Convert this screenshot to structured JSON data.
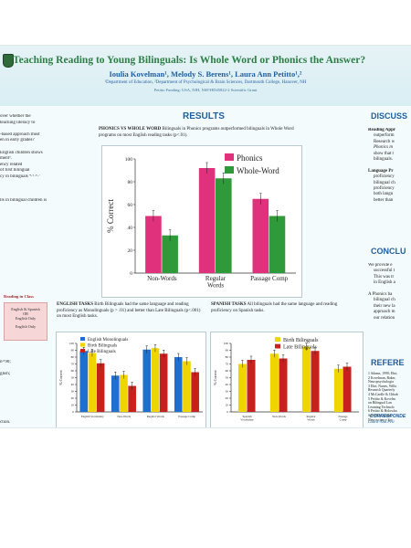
{
  "header": {
    "title": "Teaching Reading to Young Bilinguals: Is Whole Word or Phonics the Answer?",
    "authors": "Ioulia Kovelman¹, Melody S. Berens¹, Laura Ann Petitto¹,²",
    "affiliation": "¹Department of Education, ²Department of Psychological & Brain Sciences, Dartmouth College, Hanover, NH",
    "funding": "Petitto Funding: USA, NIH, NSF/HD45822-2 Scientific Grant"
  },
  "left_column": {
    "lines": [
      "over whether the",
      "teaching literacy to",
      "",
      "-based approach most",
      "en in early grades?",
      "",
      "English children shows",
      "ment³.",
      "ency related",
      "of first bilingual",
      "cy in bilinguals ⁴·⁵·⁶·⁷",
      "",
      "",
      "",
      "lls in bilingual children is"
    ],
    "flow_title": "Reading in Class",
    "flow_items": [
      "English & Spanish",
      "OR",
      "English Only",
      "English Only"
    ],
    "lower_lines": [
      "n=90;",
      "",
      "glish;",
      "",
      "",
      "",
      "",
      "",
      "",
      "",
      "ction."
    ]
  },
  "results": {
    "heading": "RESULTS",
    "phonics_title": "PHONICS VS WHOLE WORD",
    "phonics_text": "Bilinguals in Phonics programs outperformed bilinguals in Whole Word programs on most English reading tasks (p<.01).",
    "english_title": "ENGLISH TASKS",
    "english_text": "Birth Bilinguals had the same language and reading proficiency as Monolinguals (p > .01) and better than Late Bilinguals (p<.001) on most English tasks.",
    "spanish_title": "SPANISH TASKS",
    "spanish_text": "All bilinguals had the same language and reading proficiency on Spanish tasks."
  },
  "right_column": {
    "discussion_heading": "DISCUSS",
    "discussion_lines": [
      "Reading Appr",
      "outperform",
      "Research w",
      "Phonics m",
      "show that t",
      "bilinguals.",
      "",
      "Language Pr",
      "proficiency",
      "bilingual ch",
      "proficiency",
      "both langu",
      "better than"
    ],
    "conclusion_heading": "CONCLU",
    "conclusion_lines": [
      "We provide e",
      "successful t",
      "This was tr",
      "in English a",
      "",
      "A Phonics ba",
      "bilingual ch",
      "their new la",
      "approach m",
      "our relation"
    ],
    "references_heading": "REFERE",
    "references": [
      "1 Adams, 1990; Ehri,",
      "2 Kovelman, Baker,",
      "  Neuropsychologia",
      "3 Ehri, Nunes, Willo",
      "  Research Quarterly",
      "4 McCardle & Chhab",
      "5 Petitto & Kovelm",
      "  on Bilingual Lan",
      "  Learning Technolo",
      "6 Petitto & Holowka",
      "  Speech of young",
      "  Neuroscience Soc",
      "7 Petitto, Katerelos,",
      "  Linguistic milesto",
      "  Language acquis",
      "8 Wolf & Katzir-Coh"
    ],
    "correspondence_label": "CORRESPONDE",
    "correspondence_lines": [
      "Laura-Ann.Peti",
      "LANGUAGE, ACG"
    ]
  },
  "colors": {
    "magenta": "#e0317c",
    "green": "#2e9a3a",
    "blue": "#1f6fd0",
    "yellow": "#f0d400",
    "red": "#c8201c",
    "heading_blue": "#1f5fa1",
    "title_green": "#2e7e47"
  },
  "chart_data": [
    {
      "type": "bar",
      "title": "",
      "categories": [
        "Non-Words",
        "Regular Words",
        "Passage Comp"
      ],
      "series": [
        {
          "name": "Phonics",
          "values": [
            50,
            92,
            65
          ]
        },
        {
          "name": "Whole-Word",
          "values": [
            33,
            83,
            50
          ]
        }
      ],
      "ylabel": "% Correct",
      "ylim": [
        0,
        100
      ],
      "yticks": [
        0,
        20,
        40,
        60,
        80,
        100
      ],
      "legend": "top-right",
      "grid": false
    },
    {
      "type": "bar",
      "title": "",
      "categories": [
        "English Vocabulary",
        "Non-Words",
        "Regular Words",
        "Passage Comp"
      ],
      "series": [
        {
          "name": "English Monolinguals",
          "values": [
            89,
            53,
            91,
            80
          ]
        },
        {
          "name": "Birth Bilinguals",
          "values": [
            86,
            54,
            93,
            74
          ]
        },
        {
          "name": "Late Bilinguals",
          "values": [
            71,
            38,
            85,
            58
          ]
        }
      ],
      "ylabel": "% Correct",
      "ylim": [
        0,
        100
      ],
      "yticks": [
        0,
        10,
        20,
        30,
        40,
        50,
        60,
        70,
        80,
        90,
        100
      ],
      "legend": "top-left",
      "grid": false
    },
    {
      "type": "bar",
      "title": "",
      "categories": [
        "Spanish Vocabulary",
        "Non-Words",
        "Regular Words",
        "Passage Comp"
      ],
      "series": [
        {
          "name": "Birth Bilinguals",
          "values": [
            70,
            85,
            95,
            63
          ]
        },
        {
          "name": "Late Bilinguals",
          "values": [
            76,
            78,
            89,
            66
          ]
        }
      ],
      "ylabel": "% Correct",
      "ylim": [
        0,
        100
      ],
      "yticks": [
        0,
        10,
        20,
        30,
        40,
        50,
        60,
        70,
        80,
        90,
        100
      ],
      "legend": "top-left",
      "grid": false
    }
  ]
}
